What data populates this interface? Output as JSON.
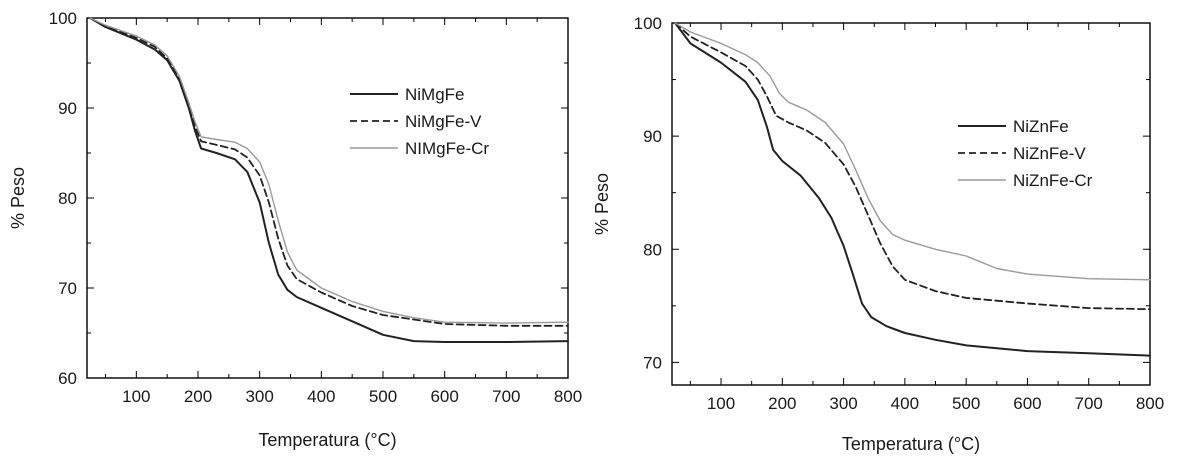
{
  "chart_data": [
    {
      "type": "line",
      "title": "",
      "xlabel": "Temperatura (°C)",
      "ylabel": "% Peso",
      "xlim": [
        20,
        800
      ],
      "ylim": [
        60,
        100
      ],
      "xticks": [
        100,
        200,
        300,
        400,
        500,
        600,
        700,
        800
      ],
      "yticks": [
        60,
        70,
        80,
        90,
        100
      ],
      "legend_position": "top-right",
      "grid": false,
      "series": [
        {
          "name": "NiMgFe",
          "style": "solid",
          "color": "#222222",
          "points": [
            [
              25,
              100
            ],
            [
              50,
              99
            ],
            [
              100,
              97.6
            ],
            [
              130,
              96.5
            ],
            [
              150,
              95.3
            ],
            [
              170,
              93
            ],
            [
              185,
              90
            ],
            [
              195,
              87.5
            ],
            [
              205,
              85.5
            ],
            [
              230,
              85
            ],
            [
              260,
              84.3
            ],
            [
              280,
              82.9
            ],
            [
              300,
              79.5
            ],
            [
              315,
              75
            ],
            [
              330,
              71.5
            ],
            [
              345,
              69.8
            ],
            [
              360,
              69
            ],
            [
              400,
              67.8
            ],
            [
              450,
              66.3
            ],
            [
              500,
              64.8
            ],
            [
              550,
              64.1
            ],
            [
              600,
              64
            ],
            [
              700,
              64
            ],
            [
              800,
              64.1
            ]
          ]
        },
        {
          "name": "NiMgFe-V",
          "style": "dashed",
          "color": "#222222",
          "points": [
            [
              25,
              100
            ],
            [
              50,
              99.1
            ],
            [
              100,
              97.8
            ],
            [
              130,
              96.8
            ],
            [
              150,
              95.5
            ],
            [
              170,
              93.2
            ],
            [
              185,
              90.2
            ],
            [
              195,
              88
            ],
            [
              205,
              86.3
            ],
            [
              230,
              85.9
            ],
            [
              260,
              85.4
            ],
            [
              280,
              84.5
            ],
            [
              300,
              82.5
            ],
            [
              315,
              79.5
            ],
            [
              330,
              75.5
            ],
            [
              345,
              72.5
            ],
            [
              360,
              71
            ],
            [
              400,
              69.5
            ],
            [
              450,
              68
            ],
            [
              500,
              67
            ],
            [
              550,
              66.5
            ],
            [
              600,
              66
            ],
            [
              700,
              65.8
            ],
            [
              800,
              65.8
            ]
          ]
        },
        {
          "name": "NIMgFe-Cr",
          "style": "solid",
          "color": "#9a9a9a",
          "points": [
            [
              25,
              100
            ],
            [
              50,
              99.2
            ],
            [
              100,
              98
            ],
            [
              130,
              97
            ],
            [
              150,
              95.8
            ],
            [
              170,
              93.5
            ],
            [
              185,
              90.6
            ],
            [
              195,
              88.5
            ],
            [
              205,
              86.8
            ],
            [
              230,
              86.5
            ],
            [
              260,
              86.2
            ],
            [
              280,
              85.5
            ],
            [
              300,
              84
            ],
            [
              315,
              81.5
            ],
            [
              330,
              77.5
            ],
            [
              345,
              74
            ],
            [
              360,
              72
            ],
            [
              400,
              70
            ],
            [
              450,
              68.5
            ],
            [
              500,
              67.4
            ],
            [
              550,
              66.7
            ],
            [
              600,
              66.2
            ],
            [
              700,
              66.1
            ],
            [
              800,
              66.2
            ]
          ]
        }
      ]
    },
    {
      "type": "line",
      "title": "",
      "xlabel": "Temperatura (°C)",
      "ylabel": "% Peso",
      "xlim": [
        20,
        800
      ],
      "ylim": [
        68,
        100
      ],
      "xticks": [
        100,
        200,
        300,
        400,
        500,
        600,
        700,
        800
      ],
      "yticks": [
        70,
        80,
        90,
        100
      ],
      "legend_position": "right",
      "grid": false,
      "series": [
        {
          "name": "NiZnFe",
          "style": "solid",
          "color": "#222222",
          "points": [
            [
              25,
              100
            ],
            [
              50,
              98.2
            ],
            [
              100,
              96.5
            ],
            [
              140,
              94.8
            ],
            [
              160,
              93.2
            ],
            [
              175,
              90.8
            ],
            [
              185,
              88.8
            ],
            [
              200,
              87.8
            ],
            [
              230,
              86.5
            ],
            [
              260,
              84.5
            ],
            [
              280,
              82.8
            ],
            [
              300,
              80.3
            ],
            [
              315,
              77.8
            ],
            [
              330,
              75.2
            ],
            [
              345,
              74
            ],
            [
              370,
              73.2
            ],
            [
              400,
              72.6
            ],
            [
              450,
              72
            ],
            [
              500,
              71.5
            ],
            [
              600,
              71
            ],
            [
              700,
              70.8
            ],
            [
              800,
              70.6
            ]
          ]
        },
        {
          "name": "NiZnFe-V",
          "style": "dashed",
          "color": "#222222",
          "points": [
            [
              25,
              100
            ],
            [
              50,
              98.8
            ],
            [
              100,
              97.4
            ],
            [
              140,
              96.2
            ],
            [
              160,
              95
            ],
            [
              175,
              93.5
            ],
            [
              190,
              91.8
            ],
            [
              210,
              91.2
            ],
            [
              240,
              90.5
            ],
            [
              270,
              89.4
            ],
            [
              300,
              87.5
            ],
            [
              320,
              85.5
            ],
            [
              340,
              83
            ],
            [
              360,
              80.5
            ],
            [
              380,
              78.5
            ],
            [
              400,
              77.3
            ],
            [
              450,
              76.3
            ],
            [
              500,
              75.7
            ],
            [
              600,
              75.2
            ],
            [
              700,
              74.8
            ],
            [
              800,
              74.7
            ]
          ]
        },
        {
          "name": "NiZnFe-Cr",
          "style": "solid",
          "color": "#9a9a9a",
          "points": [
            [
              25,
              100
            ],
            [
              50,
              99.2
            ],
            [
              100,
              98.2
            ],
            [
              140,
              97.2
            ],
            [
              160,
              96.5
            ],
            [
              180,
              95.3
            ],
            [
              195,
              93.8
            ],
            [
              210,
              93
            ],
            [
              240,
              92.3
            ],
            [
              270,
              91.2
            ],
            [
              300,
              89.3
            ],
            [
              320,
              87
            ],
            [
              340,
              84.5
            ],
            [
              360,
              82.5
            ],
            [
              380,
              81.3
            ],
            [
              400,
              80.8
            ],
            [
              450,
              80
            ],
            [
              500,
              79.4
            ],
            [
              550,
              78.3
            ],
            [
              600,
              77.8
            ],
            [
              700,
              77.4
            ],
            [
              800,
              77.3
            ]
          ]
        }
      ]
    }
  ]
}
